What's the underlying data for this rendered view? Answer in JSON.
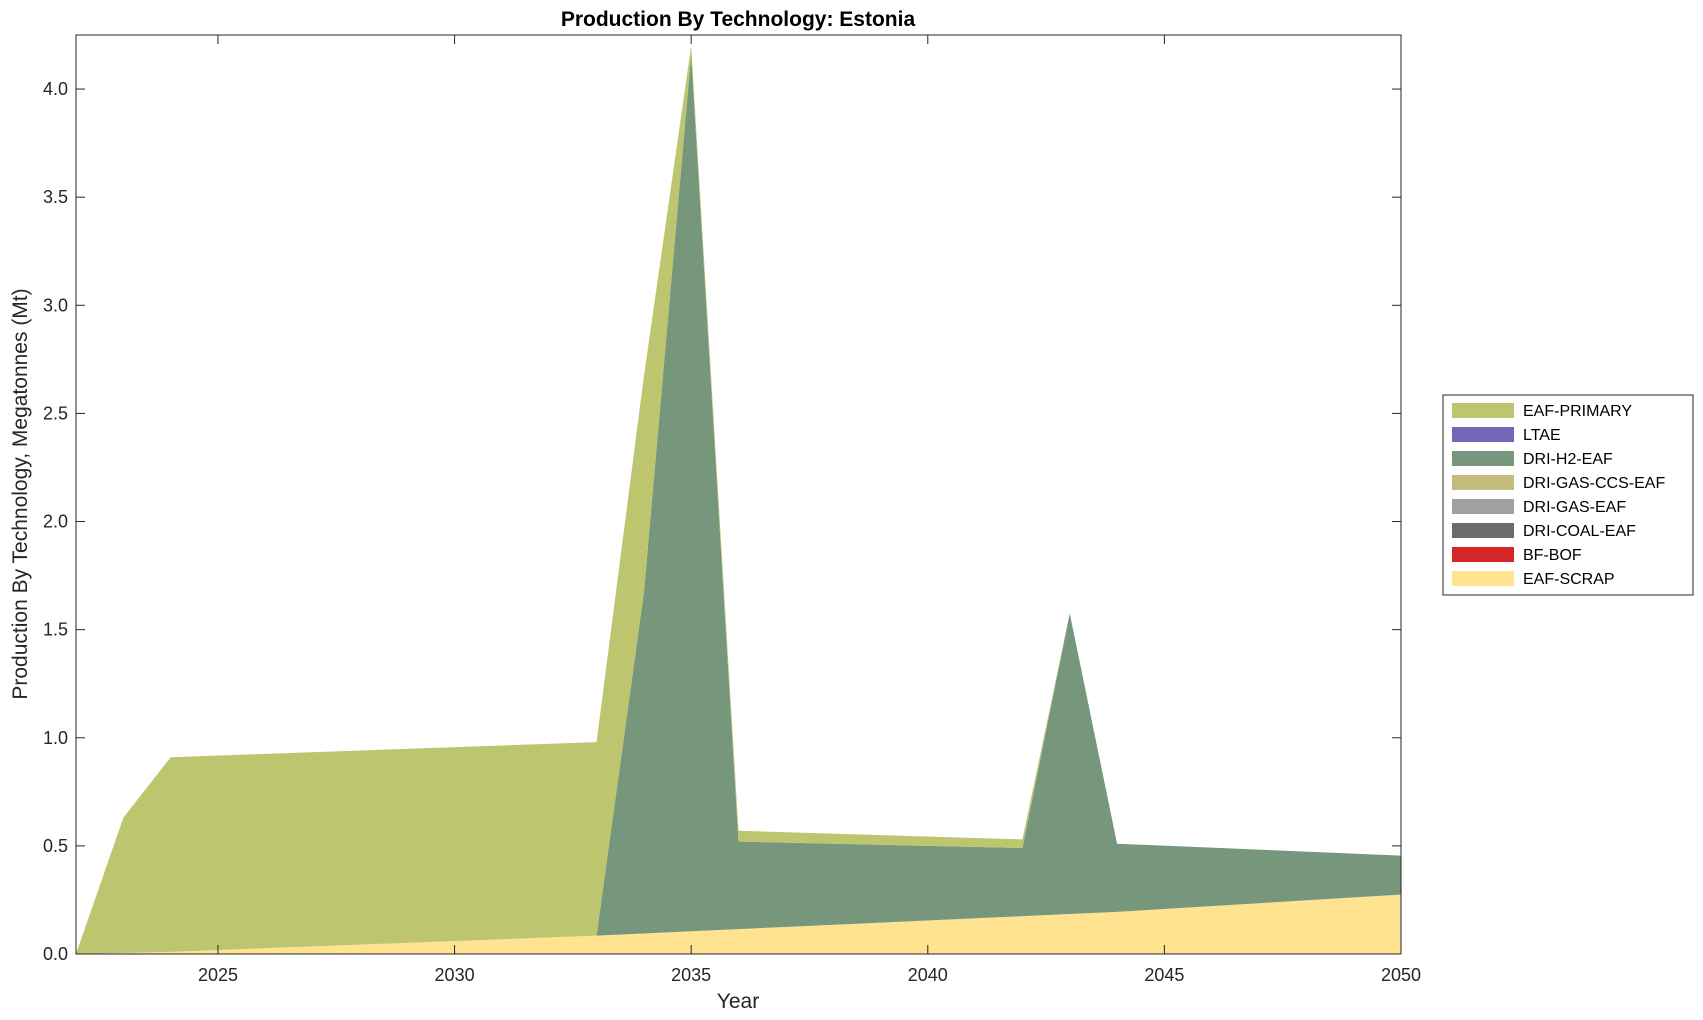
{
  "chart_data": {
    "type": "area",
    "title": "Production By Technology: Estonia",
    "xlabel": "Year",
    "ylabel": "Production By Technology, Megatonnes (Mt)",
    "xlim": [
      2022,
      2050
    ],
    "ylim": [
      0,
      4.25
    ],
    "x_ticks": [
      2025,
      2030,
      2035,
      2040,
      2045,
      2050
    ],
    "y_ticks": [
      0.0,
      0.5,
      1.0,
      1.5,
      2.0,
      2.5,
      3.0,
      3.5,
      4.0
    ],
    "y_tick_labels": [
      "0.0",
      "0.5",
      "1.0",
      "1.5",
      "2.0",
      "2.5",
      "3.0",
      "3.5",
      "4.0"
    ],
    "grid": false,
    "legend_position": "right",
    "stacked": true,
    "x": [
      2022,
      2023,
      2024,
      2033,
      2034,
      2035,
      2036,
      2042,
      2043,
      2044,
      2050
    ],
    "series": [
      {
        "name": "EAF-SCRAP",
        "color": "#FFE391",
        "values": [
          0.0,
          0.005,
          0.01,
          0.085,
          0.095,
          0.105,
          0.115,
          0.175,
          0.185,
          0.195,
          0.275
        ]
      },
      {
        "name": "BF-BOF",
        "color": "#D62728",
        "values": [
          0,
          0,
          0,
          0,
          0,
          0,
          0,
          0,
          0,
          0,
          0
        ]
      },
      {
        "name": "DRI-COAL-EAF",
        "color": "#6B6B6B",
        "values": [
          0,
          0,
          0,
          0,
          0,
          0,
          0,
          0,
          0,
          0,
          0
        ]
      },
      {
        "name": "DRI-GAS-EAF",
        "color": "#A0A0A0",
        "values": [
          0,
          0,
          0,
          0,
          0,
          0,
          0,
          0,
          0,
          0,
          0
        ]
      },
      {
        "name": "DRI-GAS-CCS-EAF",
        "color": "#C5BC7C",
        "values": [
          0,
          0,
          0,
          0,
          0,
          0,
          0,
          0,
          0,
          0,
          0
        ]
      },
      {
        "name": "DRI-H2-EAF",
        "color": "#76977C",
        "values": [
          0.0,
          0.0,
          0.0,
          0.0,
          1.575,
          4.055,
          0.405,
          0.315,
          1.39,
          0.315,
          0.18
        ]
      },
      {
        "name": "LTAE",
        "color": "#7566B8",
        "values": [
          0,
          0,
          0,
          0,
          0,
          0,
          0,
          0,
          0,
          0,
          0
        ]
      },
      {
        "name": "EAF-PRIMARY",
        "color": "#BDC66E",
        "values": [
          0.0,
          0.625,
          0.9,
          0.895,
          1.0,
          0.04,
          0.05,
          0.04,
          0.0,
          0.0,
          0.0
        ]
      }
    ],
    "legend_order": [
      "EAF-PRIMARY",
      "LTAE",
      "DRI-H2-EAF",
      "DRI-GAS-CCS-EAF",
      "DRI-GAS-EAF",
      "DRI-COAL-EAF",
      "BF-BOF",
      "EAF-SCRAP"
    ]
  }
}
